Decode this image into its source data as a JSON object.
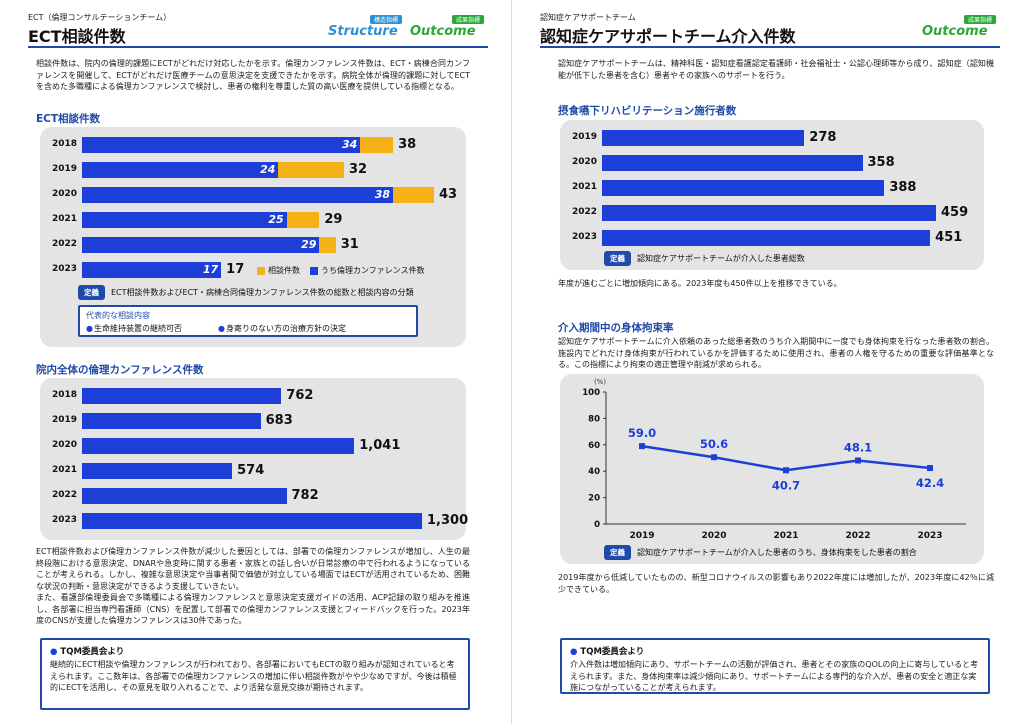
{
  "left_page": {
    "header": {
      "supertitle": "ECT（倫理コンサルテーションチーム）",
      "title": "ECT相談件数"
    },
    "logos": [
      {
        "caption": "構造指標",
        "word": "Structure"
      },
      {
        "caption": "成果指標",
        "word": "Outcome"
      }
    ],
    "intro": "相談件数は、院内の倫理的課題にECTがどれだけ対応したかを示す。倫理カンファレンス件数は、ECT・病棟合同カンファレンスを開催して、ECTがどれだけ医療チームの意思決定を支援できたかを示す。病院全体が倫理的課題に対してECTを含めた多職種による倫理カンファレンスで検討し、患者の権利を尊重した質の高い医療を提供している指標となる。",
    "chart1": {
      "section_title": "ECT相談件数",
      "legend": {
        "total_label": "相談件数",
        "conf_label": "うち倫理カンファレンス件数"
      },
      "definition_badge": "定義",
      "definition_text": "ECT相談件数およびECT・病棟合同倫理カンファレンス件数の総数と相談内容の分類",
      "cases": {
        "title": "代表的な相談内容",
        "items": [
          "生命維持装置の継続可否",
          "身寄りのない方の治療方針の決定"
        ]
      }
    },
    "chart2": {
      "section_title": "院内全体の倫理カンファレンス件数"
    },
    "body": "ECT相談件数および倫理カンファレンス件数が減少した要因としては、部署での倫理カンファレンスが増加し、人生の最終段階における意思決定、DNARや急変時に関する患者・家族との話し合いが日常診療の中で行われるようになっていることが考えられる。しかし、複雑な意思決定や当事者間で価値が対立している場面ではECTが活用されているため、困難な状況の判断・意思決定ができるよう支援していきたい。\nまた、看護部倫理委員会で多職種による倫理カンファレンスと意思決定支援ガイドの活用、ACP記録の取り組みを推進し、各部署に担当専門看護師（CNS）を配置して部署での倫理カンファレンス支援とフィードバックを行った。2023年度のCNSが支援した倫理カンファレンスは30件であった。",
    "tqm": {
      "heading": "TQM委員会より",
      "text": "継続的にECT相談や倫理カンファレンスが行われており、各部署においてもECTの取り組みが認知されていると考えられます。ここ数年は、各部署での倫理カンファレンスの増加に伴い相談件数がやや少なめですが、今後は積極的にECTを活用し、その意見を取り入れることで、より活発な意見交換が期待されます。"
    }
  },
  "right_page": {
    "header": {
      "supertitle": "認知症ケアサポートチーム",
      "title": "認知症ケアサポートチーム介入件数"
    },
    "logos": [
      {
        "caption": "成果指標",
        "word": "Outcome"
      }
    ],
    "intro": "認知症ケアサポートチームは、精神科医・認知症看護認定看護師・社会福祉士・公認心理師等から成り、認知症（認知機能が低下した患者を含む）患者やその家族へのサポートを行う。",
    "chart3": {
      "section_title": "摂食嚥下リハビリテーション施行者数",
      "definition_badge": "定義",
      "definition_text": "認知症ケアサポートチームが介入した患者総数"
    },
    "text3": "年度が進むごとに増加傾向にある。2023年度も450件以上を推移できている。",
    "section4_title": "介入期間中の身体拘束率",
    "intro4": "認知症ケアサポートチームに介入依頼のあった総患者数のうち介入期間中に一度でも身体拘束を行なった患者数の割合。施設内でどれだけ身体拘束が行われているかを評価するために使用され、患者の人権を守るための重要な評価基準となる。この指標により拘束の適正管理や削減が求められる。",
    "chart4": {
      "definition_badge": "定義",
      "definition_text": "認知症ケアサポートチームが介入した患者のうち、身体拘束をした患者の割合"
    },
    "text4": "2019年度から低減していたものの、新型コロナウイルスの影響もあり2022年度には増加したが、2023年度に42％に減少できている。",
    "tqm": {
      "heading": "TQM委員会より",
      "text": "介入件数は増加傾向にあり、サポートチームの活動が評価され、患者とその家族のQOLの向上に寄与していると考えられます。また、身体拘束率は減少傾向にあり、サポートチームによる専門的な介入が、患者の安全と適正な実施につながっていることが考えられます。"
    }
  },
  "chart_data": [
    {
      "type": "bar",
      "orientation": "horizontal",
      "stacked": true,
      "title": "ECT相談件数",
      "categories": [
        "2018",
        "2019",
        "2020",
        "2021",
        "2022",
        "2023"
      ],
      "series": [
        {
          "name": "うち倫理カンファレンス件数",
          "values": [
            34,
            24,
            38,
            25,
            29,
            17
          ]
        },
        {
          "name": "相談件数",
          "values": [
            38,
            32,
            43,
            29,
            31,
            17
          ]
        }
      ],
      "colors": {
        "conf": "#1d3fd8",
        "total": "#f6b117"
      },
      "legend": "bottom-right"
    },
    {
      "type": "bar",
      "orientation": "horizontal",
      "title": "院内全体の倫理カンファレンス件数",
      "categories": [
        "2018",
        "2019",
        "2020",
        "2021",
        "2022",
        "2023"
      ],
      "values": [
        762,
        683,
        1041,
        574,
        782,
        1300
      ],
      "value_labels": [
        "762",
        "683",
        "1,041",
        "574",
        "782",
        "1,300"
      ],
      "color": "#1d3fd8"
    },
    {
      "type": "bar",
      "orientation": "horizontal",
      "title": "摂食嚥下リハビリテーション施行者数",
      "categories": [
        "2019",
        "2020",
        "2021",
        "2022",
        "2023"
      ],
      "values": [
        278,
        358,
        388,
        459,
        451
      ],
      "color": "#1d3fd8"
    },
    {
      "type": "line",
      "title": "介入期間中の身体拘束率",
      "x": [
        "2019",
        "2020",
        "2021",
        "2022",
        "2023"
      ],
      "y": [
        59.0,
        50.6,
        40.7,
        48.1,
        42.4
      ],
      "y_labels": [
        "59.0",
        "50.6",
        "40.7",
        "48.1",
        "42.4"
      ],
      "ylabel": "(%)",
      "ylim": [
        0,
        100
      ],
      "yticks": [
        "0",
        "20",
        "40",
        "60",
        "80",
        "100"
      ],
      "grid": false,
      "color": "#1d3fd8"
    }
  ]
}
